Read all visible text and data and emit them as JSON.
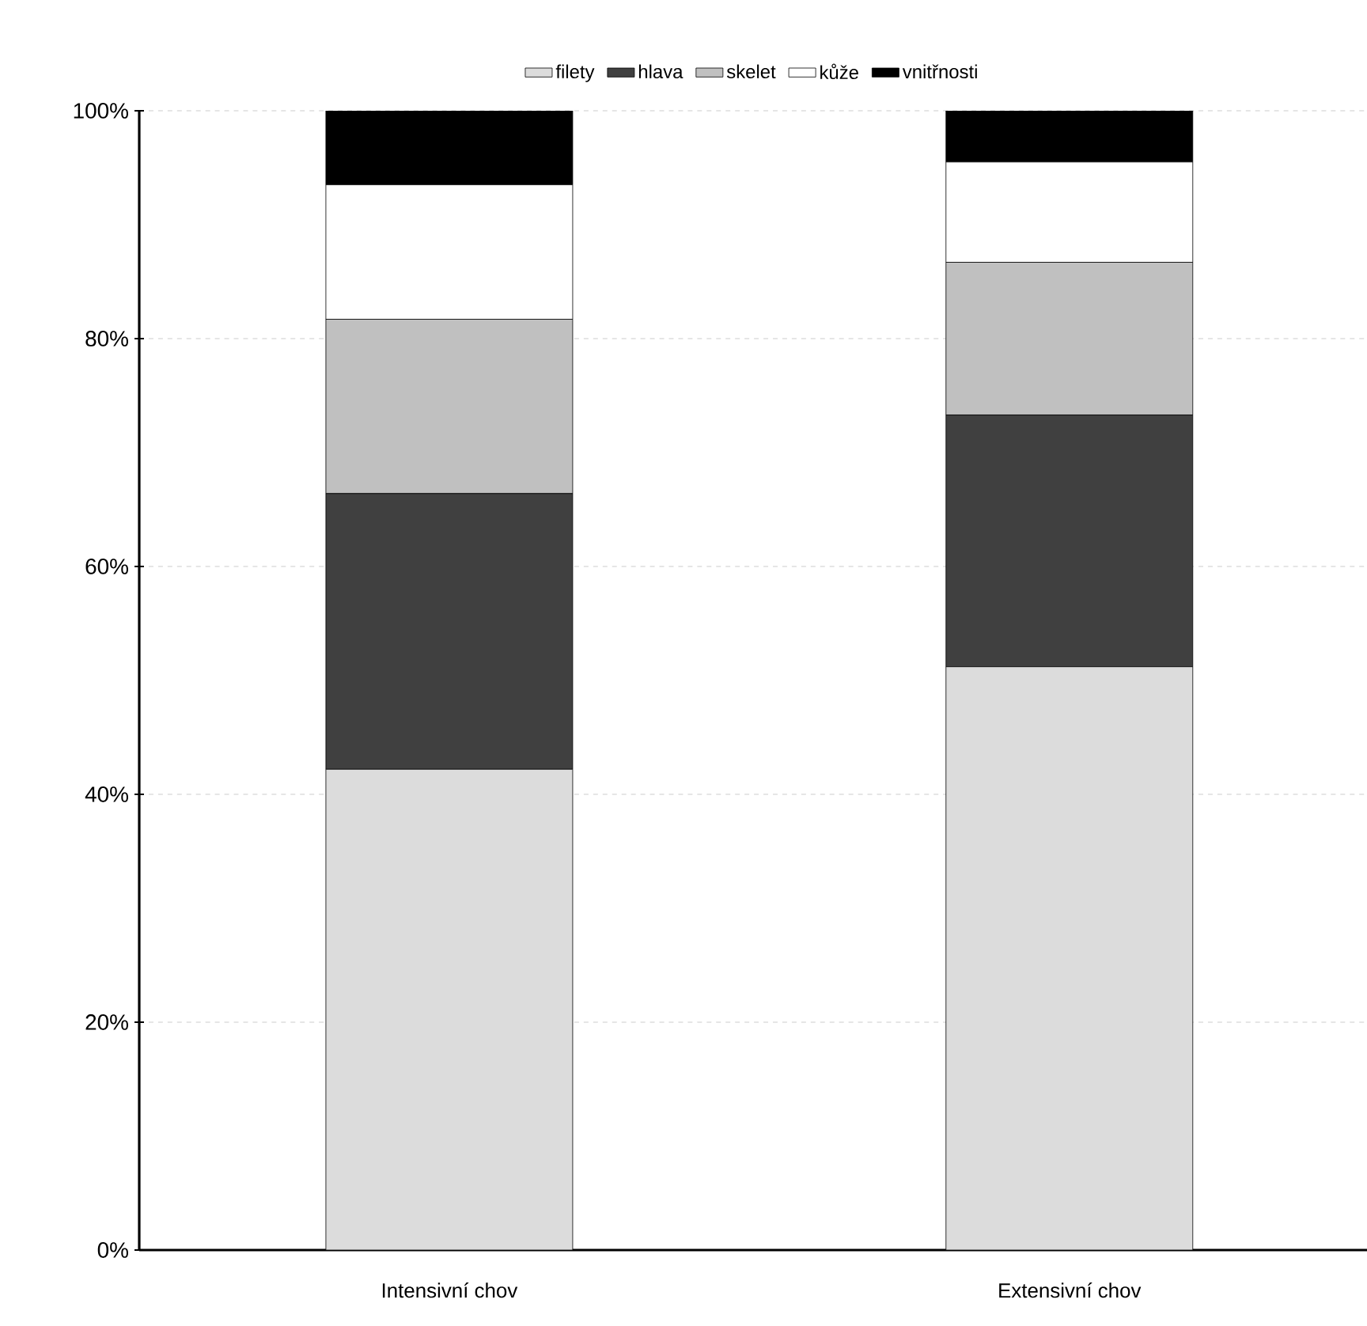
{
  "chart_data": {
    "type": "bar",
    "stacked": true,
    "categories": [
      "Intensivní chov",
      "Extensivní chov"
    ],
    "series": [
      {
        "name": "filety",
        "color": "#dcdcdc",
        "values": [
          42.2,
          51.2
        ]
      },
      {
        "name": "hlava",
        "color": "#404040",
        "values": [
          24.2,
          22.1
        ]
      },
      {
        "name": "skelet",
        "color": "#c0c0c0",
        "values": [
          15.3,
          13.4
        ]
      },
      {
        "name": "kůže",
        "color": "#ffffff",
        "values": [
          11.8,
          8.8
        ]
      },
      {
        "name": "vnitřnosti",
        "color": "#000000",
        "values": [
          6.5,
          4.5
        ]
      }
    ],
    "ylim": [
      0,
      100
    ],
    "yticks": [
      {
        "value": 0,
        "label": "0%"
      },
      {
        "value": 20,
        "label": "20%"
      },
      {
        "value": 40,
        "label": "40%"
      },
      {
        "value": 60,
        "label": "60%"
      },
      {
        "value": 80,
        "label": "80%"
      },
      {
        "value": 100,
        "label": "100%"
      }
    ],
    "grid": "y",
    "legend": "top"
  }
}
